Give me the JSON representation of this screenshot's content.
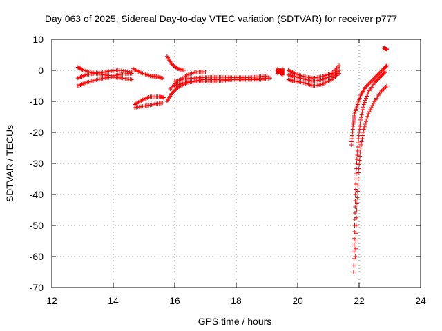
{
  "chart_data": {
    "type": "scatter",
    "title": "Day 063 of 2025, Sidereal Day-to-day VTEC variation (SDTVAR) for receiver p777",
    "xlabel": "GPS time / hours",
    "ylabel": "SDTVAR / TECUs",
    "xlim": [
      12,
      24
    ],
    "ylim": [
      -70,
      10
    ],
    "xticks": [
      12,
      14,
      16,
      18,
      20,
      22,
      24
    ],
    "yticks": [
      10,
      0,
      -10,
      -20,
      -30,
      -40,
      -50,
      -60,
      -70
    ],
    "grid": true,
    "marker": "+",
    "marker_color": "#ff0000",
    "segments": [
      {
        "name": "arc-1a",
        "x": [
          12.85,
          13.0,
          13.3,
          13.6,
          13.9,
          14.2,
          14.6
        ],
        "y": [
          1.0,
          0.2,
          -0.8,
          -0.8,
          -0.2,
          0.0,
          -0.5
        ]
      },
      {
        "name": "arc-1b",
        "x": [
          12.85,
          13.1,
          13.4,
          13.7,
          14.0,
          14.3,
          14.6
        ],
        "y": [
          -2.5,
          -1.5,
          -1.0,
          -1.5,
          -1.8,
          -1.2,
          -1.0
        ]
      },
      {
        "name": "arc-1c",
        "x": [
          12.85,
          13.1,
          13.4,
          13.7,
          14.0,
          14.3,
          14.6
        ],
        "y": [
          -5.0,
          -4.0,
          -3.2,
          -2.5,
          -2.2,
          -2.5,
          -3.0
        ]
      },
      {
        "name": "arc-2a",
        "x": [
          14.65,
          14.9,
          15.2,
          15.4,
          15.6
        ],
        "y": [
          0.5,
          -0.8,
          -1.8,
          -2.0,
          -2.5
        ]
      },
      {
        "name": "arc-2b",
        "x": [
          14.7,
          14.95,
          15.2,
          15.5,
          15.65
        ],
        "y": [
          -11.0,
          -9.5,
          -8.5,
          -8.5,
          -8.8
        ]
      },
      {
        "name": "arc-2c",
        "x": [
          14.7,
          15.0,
          15.3,
          15.6
        ],
        "y": [
          -12.0,
          -11.5,
          -11.0,
          -10.5
        ]
      },
      {
        "name": "arc-3a",
        "x": [
          15.75,
          15.9,
          16.1,
          16.3
        ],
        "y": [
          4.5,
          2.0,
          0.5,
          0.0
        ]
      },
      {
        "name": "arc-3b",
        "x": [
          15.75,
          15.9,
          16.1,
          16.4,
          16.7,
          17.0,
          17.3,
          17.6,
          17.9,
          18.2,
          18.5,
          18.8,
          19.1
        ],
        "y": [
          -10.0,
          -7.5,
          -5.5,
          -4.0,
          -3.5,
          -3.5,
          -3.5,
          -3.3,
          -3.0,
          -3.0,
          -3.0,
          -3.0,
          -2.5
        ]
      },
      {
        "name": "arc-3c",
        "x": [
          16.0,
          16.3,
          16.6,
          16.9,
          17.2,
          17.5,
          17.8,
          18.1,
          18.4,
          18.7,
          19.0
        ],
        "y": [
          -3.5,
          -2.8,
          -2.5,
          -2.3,
          -2.2,
          -2.2,
          -2.3,
          -2.3,
          -2.3,
          -2.1,
          -1.8
        ]
      },
      {
        "name": "arc-3d",
        "x": [
          16.0,
          16.3,
          16.6,
          16.9,
          17.2,
          17.5,
          17.8,
          18.1,
          18.4,
          18.7,
          19.0
        ],
        "y": [
          -5.0,
          -4.0,
          -3.5,
          -3.0,
          -3.0,
          -3.0,
          -3.0,
          -2.9,
          -2.8,
          -2.7,
          -2.5
        ]
      },
      {
        "name": "arc-3e",
        "x": [
          15.85,
          16.1,
          16.4,
          16.7,
          17.0
        ],
        "y": [
          -6.0,
          -3.5,
          -1.5,
          -0.5,
          -0.5
        ]
      },
      {
        "name": "arc-4",
        "x": [
          19.35,
          19.35,
          19.35,
          19.5,
          19.5,
          19.5
        ],
        "y": [
          -1.0,
          -0.2,
          0.5,
          -1.5,
          -0.5,
          0.5
        ]
      },
      {
        "name": "arc-5a",
        "x": [
          19.7,
          19.9,
          20.2,
          20.5,
          20.8,
          21.1,
          21.35
        ],
        "y": [
          0.0,
          -1.0,
          -2.0,
          -2.5,
          -2.0,
          -1.0,
          1.5
        ]
      },
      {
        "name": "arc-5b",
        "x": [
          19.7,
          19.9,
          20.2,
          20.5,
          20.8,
          21.1,
          21.35
        ],
        "y": [
          -1.5,
          -2.0,
          -2.8,
          -3.5,
          -3.0,
          -1.8,
          0.0
        ]
      },
      {
        "name": "arc-5c",
        "x": [
          19.7,
          19.9,
          20.2,
          20.5,
          20.8,
          21.1,
          21.35
        ],
        "y": [
          -3.0,
          -3.5,
          -4.0,
          -5.0,
          -4.5,
          -3.0,
          -1.0
        ]
      },
      {
        "name": "arc-6a",
        "x": [
          21.82,
          21.85,
          21.88,
          21.92,
          21.98,
          22.05,
          22.15,
          22.3,
          22.5,
          22.7,
          22.85
        ],
        "y": [
          -65.0,
          -52.0,
          -40.0,
          -30.0,
          -22.0,
          -16.0,
          -11.0,
          -7.0,
          -4.0,
          -2.0,
          -0.5
        ]
      },
      {
        "name": "arc-6b",
        "x": [
          21.75,
          21.8,
          21.85,
          21.95,
          22.05,
          22.2,
          22.4,
          22.6,
          22.8,
          22.9
        ],
        "y": [
          -24.0,
          -18.0,
          -14.0,
          -11.0,
          -8.0,
          -5.5,
          -3.5,
          -1.5,
          0.5,
          1.5
        ]
      },
      {
        "name": "arc-6c",
        "x": [
          21.88,
          21.92,
          21.98,
          22.05,
          22.15,
          22.3,
          22.5,
          22.7,
          22.9
        ],
        "y": [
          -60.0,
          -45.0,
          -33.0,
          -25.0,
          -19.0,
          -14.0,
          -10.0,
          -7.0,
          -5.0
        ]
      },
      {
        "name": "arc-6d",
        "x": [
          22.8,
          22.85,
          22.9
        ],
        "y": [
          7.2,
          7.0,
          6.8
        ]
      }
    ]
  }
}
